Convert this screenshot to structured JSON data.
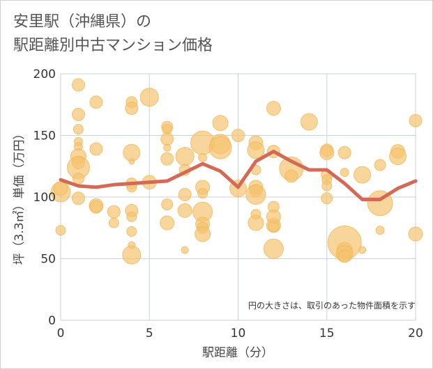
{
  "title_lines": [
    "安里駅（沖縄県）の",
    "駅距離別中古マンション価格"
  ],
  "chart_data": {
    "type": "scatter",
    "xlabel": "駅距離（分）",
    "ylabel": "坪（3.3㎡）単価（万円）",
    "xlim": [
      0,
      20
    ],
    "ylim": [
      0,
      200
    ],
    "xticks": [
      0,
      5,
      10,
      15,
      20
    ],
    "yticks": [
      0,
      50,
      100,
      150,
      200
    ],
    "grid": true,
    "note": "円の大きさは、取引のあった物件面積を示す",
    "colors": {
      "bubble": "#f5c36f",
      "bubble_edge": "#f0b657",
      "line": "#d46a55",
      "grid": "#c8d2dc"
    },
    "points": [
      {
        "x": 0,
        "y": 104,
        "s": 14
      },
      {
        "x": 0,
        "y": 107,
        "s": 10
      },
      {
        "x": 0,
        "y": 73,
        "s": 7
      },
      {
        "x": 1,
        "y": 191,
        "s": 9
      },
      {
        "x": 1,
        "y": 167,
        "s": 9
      },
      {
        "x": 1,
        "y": 155,
        "s": 7
      },
      {
        "x": 1,
        "y": 145,
        "s": 6
      },
      {
        "x": 1,
        "y": 141,
        "s": 6
      },
      {
        "x": 1,
        "y": 133,
        "s": 11
      },
      {
        "x": 1,
        "y": 128,
        "s": 9
      },
      {
        "x": 1,
        "y": 124,
        "s": 16
      },
      {
        "x": 1,
        "y": 115,
        "s": 8
      },
      {
        "x": 1,
        "y": 99,
        "s": 9
      },
      {
        "x": 2,
        "y": 177,
        "s": 9
      },
      {
        "x": 2,
        "y": 139,
        "s": 9
      },
      {
        "x": 2,
        "y": 93,
        "s": 10
      },
      {
        "x": 2,
        "y": 92,
        "s": 9
      },
      {
        "x": 3,
        "y": 88,
        "s": 9
      },
      {
        "x": 3,
        "y": 79,
        "s": 7
      },
      {
        "x": 4,
        "y": 177,
        "s": 8
      },
      {
        "x": 4,
        "y": 172,
        "s": 9
      },
      {
        "x": 4,
        "y": 136,
        "s": 12
      },
      {
        "x": 4,
        "y": 129,
        "s": 4
      },
      {
        "x": 4,
        "y": 111,
        "s": 8
      },
      {
        "x": 4,
        "y": 108,
        "s": 7
      },
      {
        "x": 4,
        "y": 89,
        "s": 9
      },
      {
        "x": 4,
        "y": 84,
        "s": 7
      },
      {
        "x": 4,
        "y": 72,
        "s": 7
      },
      {
        "x": 4,
        "y": 61,
        "s": 5
      },
      {
        "x": 4,
        "y": 53,
        "s": 13
      },
      {
        "x": 5,
        "y": 181,
        "s": 13
      },
      {
        "x": 5,
        "y": 112,
        "s": 10
      },
      {
        "x": 6,
        "y": 157,
        "s": 8
      },
      {
        "x": 6,
        "y": 155,
        "s": 7
      },
      {
        "x": 6,
        "y": 147,
        "s": 9
      },
      {
        "x": 6,
        "y": 140,
        "s": 5
      },
      {
        "x": 6,
        "y": 131,
        "s": 9
      },
      {
        "x": 6,
        "y": 94,
        "s": 8
      },
      {
        "x": 6,
        "y": 79,
        "s": 10
      },
      {
        "x": 7,
        "y": 133,
        "s": 13
      },
      {
        "x": 7,
        "y": 122,
        "s": 8
      },
      {
        "x": 7,
        "y": 102,
        "s": 9
      },
      {
        "x": 7,
        "y": 89,
        "s": 10
      },
      {
        "x": 7,
        "y": 57,
        "s": 5
      },
      {
        "x": 8,
        "y": 144,
        "s": 17
      },
      {
        "x": 8,
        "y": 132,
        "s": 6
      },
      {
        "x": 8,
        "y": 108,
        "s": 10
      },
      {
        "x": 8,
        "y": 103,
        "s": 7
      },
      {
        "x": 8,
        "y": 88,
        "s": 14
      },
      {
        "x": 8,
        "y": 78,
        "s": 10
      },
      {
        "x": 8,
        "y": 75,
        "s": 8
      },
      {
        "x": 8,
        "y": 70,
        "s": 11
      },
      {
        "x": 9,
        "y": 160,
        "s": 11
      },
      {
        "x": 9,
        "y": 143,
        "s": 14
      },
      {
        "x": 9,
        "y": 140,
        "s": 16
      },
      {
        "x": 10,
        "y": 150,
        "s": 9
      },
      {
        "x": 10,
        "y": 107,
        "s": 12
      },
      {
        "x": 11,
        "y": 144,
        "s": 10
      },
      {
        "x": 11,
        "y": 138,
        "s": 12
      },
      {
        "x": 11,
        "y": 122,
        "s": 7
      },
      {
        "x": 11,
        "y": 108,
        "s": 10
      },
      {
        "x": 11,
        "y": 105,
        "s": 9
      },
      {
        "x": 11,
        "y": 102,
        "s": 14
      },
      {
        "x": 11,
        "y": 86,
        "s": 7
      },
      {
        "x": 11,
        "y": 79,
        "s": 11
      },
      {
        "x": 12,
        "y": 172,
        "s": 10
      },
      {
        "x": 12,
        "y": 137,
        "s": 9
      },
      {
        "x": 12,
        "y": 92,
        "s": 8
      },
      {
        "x": 12,
        "y": 84,
        "s": 10
      },
      {
        "x": 12,
        "y": 77,
        "s": 10
      },
      {
        "x": 12,
        "y": 76,
        "s": 8
      },
      {
        "x": 12,
        "y": 58,
        "s": 14
      },
      {
        "x": 13,
        "y": 123,
        "s": 17
      },
      {
        "x": 13,
        "y": 117,
        "s": 9
      },
      {
        "x": 14,
        "y": 161,
        "s": 12
      },
      {
        "x": 15,
        "y": 138,
        "s": 9
      },
      {
        "x": 15,
        "y": 136,
        "s": 10
      },
      {
        "x": 15,
        "y": 118,
        "s": 8
      },
      {
        "x": 15,
        "y": 114,
        "s": 7
      },
      {
        "x": 15,
        "y": 109,
        "s": 7
      },
      {
        "x": 15,
        "y": 99,
        "s": 8
      },
      {
        "x": 16,
        "y": 136,
        "s": 9
      },
      {
        "x": 16,
        "y": 120,
        "s": 6
      },
      {
        "x": 16,
        "y": 63,
        "s": 24
      },
      {
        "x": 16,
        "y": 57,
        "s": 11
      },
      {
        "x": 16,
        "y": 54,
        "s": 12
      },
      {
        "x": 16,
        "y": 52,
        "s": 9
      },
      {
        "x": 17,
        "y": 118,
        "s": 12
      },
      {
        "x": 17,
        "y": 57,
        "s": 5
      },
      {
        "x": 18,
        "y": 126,
        "s": 8
      },
      {
        "x": 18,
        "y": 95,
        "s": 18
      },
      {
        "x": 18,
        "y": 73,
        "s": 6
      },
      {
        "x": 19,
        "y": 137,
        "s": 10
      },
      {
        "x": 19,
        "y": 133,
        "s": 12
      },
      {
        "x": 20,
        "y": 162,
        "s": 9
      },
      {
        "x": 20,
        "y": 70,
        "s": 10
      }
    ],
    "average_line": {
      "x": [
        0,
        1,
        2,
        3,
        4,
        5,
        6,
        7,
        8,
        9,
        10,
        11,
        12,
        13,
        14,
        15,
        16,
        17,
        18,
        19,
        20
      ],
      "y": [
        114,
        109,
        108,
        110,
        111,
        112,
        113,
        120,
        127,
        121,
        108,
        129,
        137,
        129,
        122,
        122,
        111,
        98,
        98,
        107,
        113
      ]
    }
  }
}
